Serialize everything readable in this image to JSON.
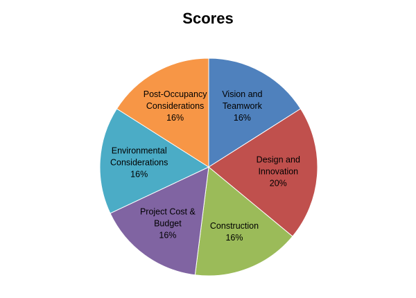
{
  "chart_data": {
    "type": "pie",
    "title": "Scores",
    "legend": "none",
    "slices": [
      {
        "label_lines": [
          "Vision and",
          "Teamwork"
        ],
        "value_label": "16%",
        "value": 16,
        "color": "#4F81BD"
      },
      {
        "label_lines": [
          "Design and",
          "Innovation"
        ],
        "value_label": "20%",
        "value": 20,
        "color": "#C0504D"
      },
      {
        "label_lines": [
          "Construction"
        ],
        "value_label": "16%",
        "value": 16,
        "color": "#9BBB59"
      },
      {
        "label_lines": [
          "Project Cost &",
          "Budget"
        ],
        "value_label": "16%",
        "value": 16,
        "color": "#8064A2"
      },
      {
        "label_lines": [
          "Environmental",
          "Considerations"
        ],
        "value_label": "16%",
        "value": 16,
        "color": "#4BACC6"
      },
      {
        "label_lines": [
          "Post-Occupancy",
          "Considerations"
        ],
        "value_label": "16%",
        "value": 16,
        "color": "#F79646"
      }
    ]
  }
}
